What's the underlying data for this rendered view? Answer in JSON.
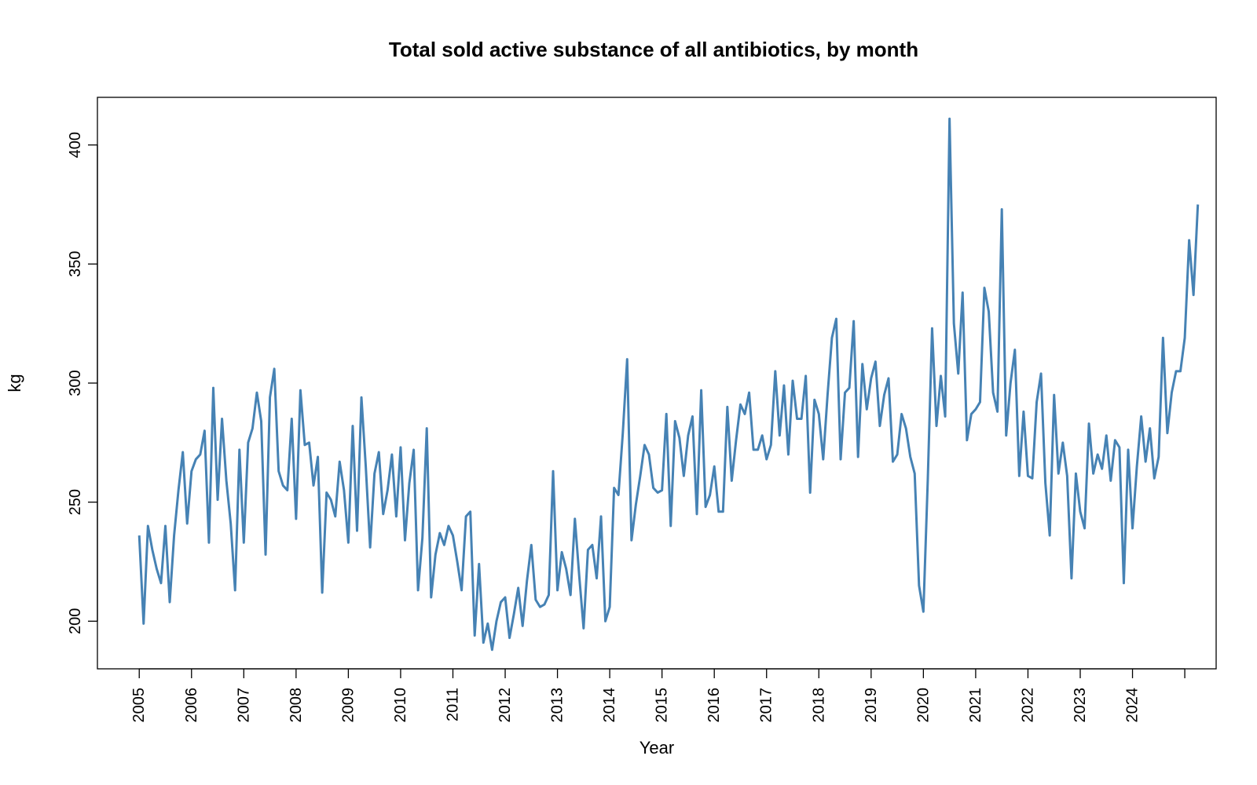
{
  "chart_data": {
    "type": "line",
    "title": "Total sold active substance of all antibiotics, by month",
    "xlabel": "Year",
    "ylabel": "kg",
    "xlim": [
      2004.2,
      2025.6
    ],
    "ylim": [
      180,
      420
    ],
    "xticks": [
      "2005",
      "2006",
      "2007",
      "2008",
      "2009",
      "2010",
      "2011",
      "2012",
      "2013",
      "2014",
      "2015",
      "2016",
      "2017",
      "2018",
      "2019",
      "2020",
      "2021",
      "2022",
      "2023",
      "2024"
    ],
    "yticks": [
      200,
      250,
      300,
      350,
      400
    ],
    "grid": false,
    "legend": "none",
    "color": "#4682B4",
    "series": [
      {
        "start_year": 2005,
        "frequency": "monthly",
        "values": [
          236,
          199,
          240,
          230,
          222,
          216,
          240,
          208,
          236,
          255,
          271,
          241,
          263,
          268,
          270,
          280,
          233,
          298,
          251,
          285,
          259,
          241,
          213,
          272,
          233,
          275,
          281,
          296,
          284,
          228,
          294,
          306,
          263,
          257,
          255,
          285,
          243,
          297,
          274,
          275,
          257,
          269,
          212,
          254,
          251,
          244,
          267,
          255,
          233,
          282,
          238,
          294,
          265,
          231,
          262,
          271,
          245,
          255,
          270,
          244,
          273,
          234,
          258,
          272,
          213,
          235,
          281,
          210,
          228,
          237,
          232,
          240,
          236,
          225,
          213,
          244,
          246,
          194,
          224,
          191,
          199,
          188,
          200,
          208,
          210,
          193,
          203,
          214,
          198,
          217,
          232,
          209,
          206,
          207,
          211,
          263,
          213,
          229,
          222,
          211,
          243,
          219,
          197,
          230,
          232,
          218,
          244,
          200,
          206,
          256,
          253,
          279,
          310,
          234,
          249,
          261,
          274,
          270,
          256,
          254,
          255,
          287,
          240,
          284,
          277,
          261,
          278,
          286,
          245,
          297,
          248,
          253,
          265,
          246,
          246,
          290,
          259,
          276,
          291,
          287,
          296,
          272,
          272,
          278,
          268,
          274,
          305,
          278,
          299,
          270,
          301,
          285,
          285,
          303,
          254,
          293,
          287,
          268,
          295,
          319,
          327,
          268,
          296,
          298,
          326,
          269,
          308,
          289,
          302,
          309,
          282,
          295,
          302,
          267,
          270,
          287,
          281,
          269,
          262,
          215,
          204,
          259,
          323,
          282,
          303,
          286,
          411,
          325,
          304,
          338,
          276,
          287,
          289,
          292,
          340,
          330,
          296,
          288,
          373,
          278,
          300,
          314,
          261,
          288,
          261,
          260,
          292,
          304,
          258,
          236,
          295,
          262,
          275,
          261,
          218,
          262,
          246,
          239,
          283,
          262,
          270,
          264,
          278,
          259,
          276,
          273,
          216,
          272,
          239,
          265,
          286,
          267,
          281,
          260,
          269,
          319,
          279,
          296,
          305,
          305,
          319,
          360,
          337,
          375
        ]
      }
    ]
  }
}
